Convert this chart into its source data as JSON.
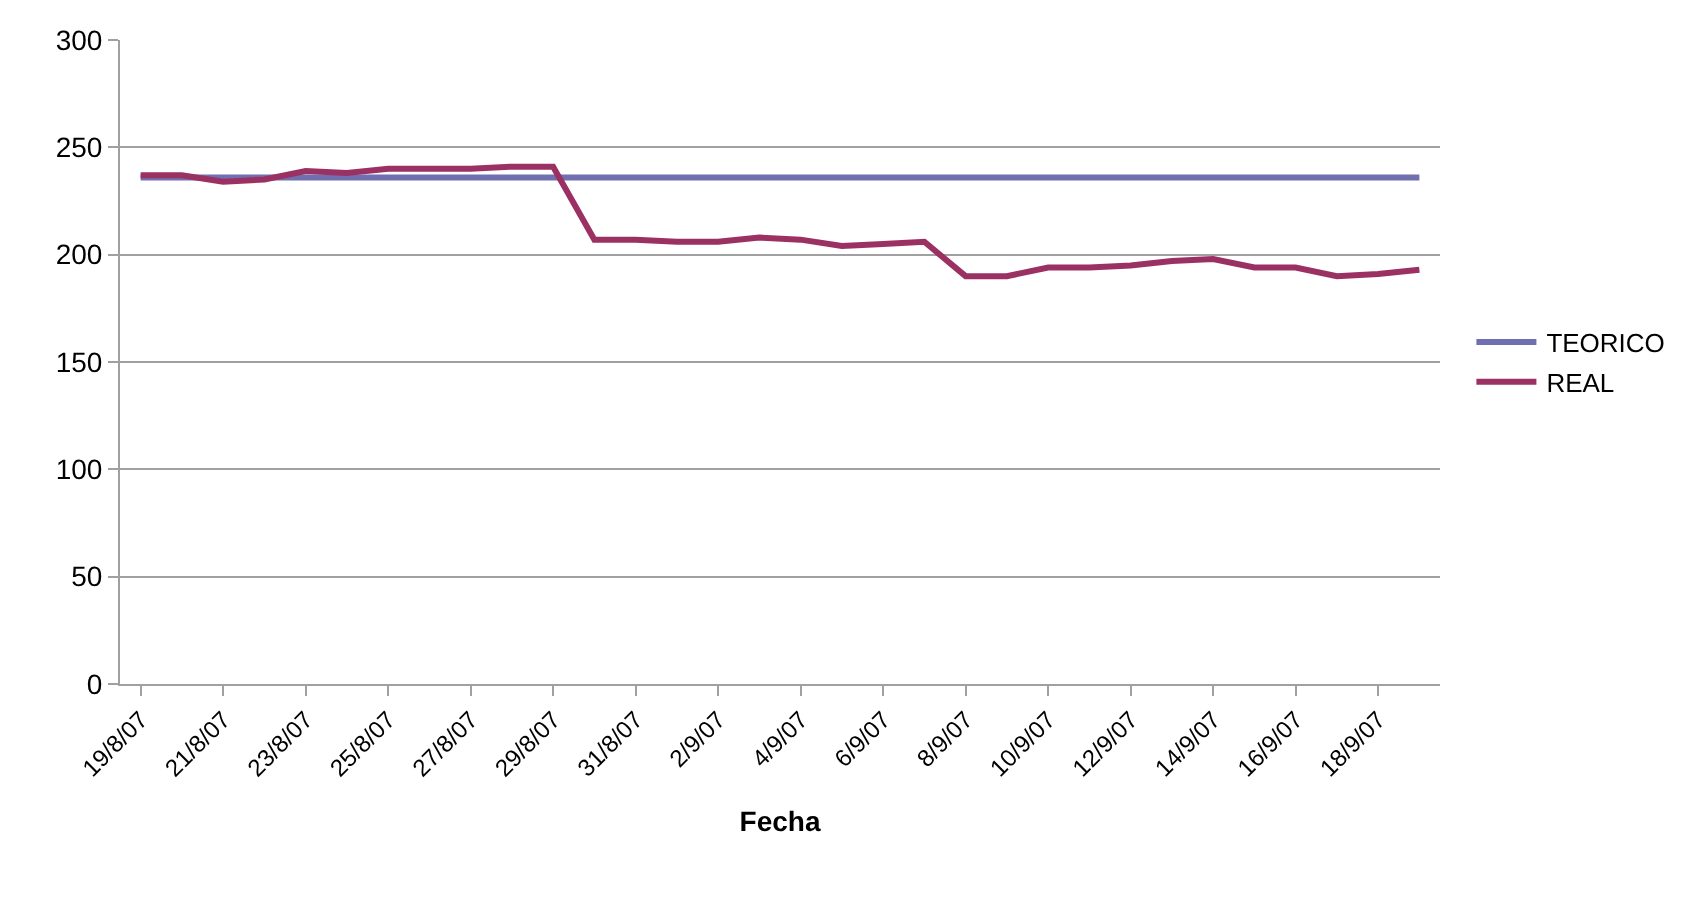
{
  "chart_data": {
    "type": "line",
    "xlabel": "Fecha",
    "categories": [
      "19/8/07",
      null,
      "21/8/07",
      null,
      "23/8/07",
      null,
      "25/8/07",
      null,
      "27/8/07",
      null,
      "29/8/07",
      null,
      "31/8/07",
      null,
      "2/9/07",
      null,
      "4/9/07",
      null,
      "6/9/07",
      null,
      "8/9/07",
      null,
      "10/9/07",
      null,
      "12/9/07",
      null,
      "14/9/07",
      null,
      "16/9/07",
      null,
      "18/9/07",
      null
    ],
    "series": [
      {
        "name": "TEORICO",
        "color": "#7070b0",
        "values": [
          236,
          236,
          236,
          236,
          236,
          236,
          236,
          236,
          236,
          236,
          236,
          236,
          236,
          236,
          236,
          236,
          236,
          236,
          236,
          236,
          236,
          236,
          236,
          236,
          236,
          236,
          236,
          236,
          236,
          236,
          236,
          236
        ]
      },
      {
        "name": "REAL",
        "color": "#9b3163",
        "values": [
          237,
          237,
          234,
          235,
          239,
          238,
          240,
          240,
          240,
          241,
          241,
          207,
          207,
          206,
          206,
          208,
          207,
          204,
          205,
          206,
          190,
          190,
          194,
          194,
          195,
          197,
          198,
          194,
          194,
          190,
          191,
          193
        ]
      }
    ],
    "ylim": [
      0,
      300
    ],
    "yticks": [
      0,
      50,
      100,
      150,
      200,
      250,
      300
    ],
    "grid": "y",
    "legend": "right",
    "marker": "none",
    "line_style": "solid"
  }
}
